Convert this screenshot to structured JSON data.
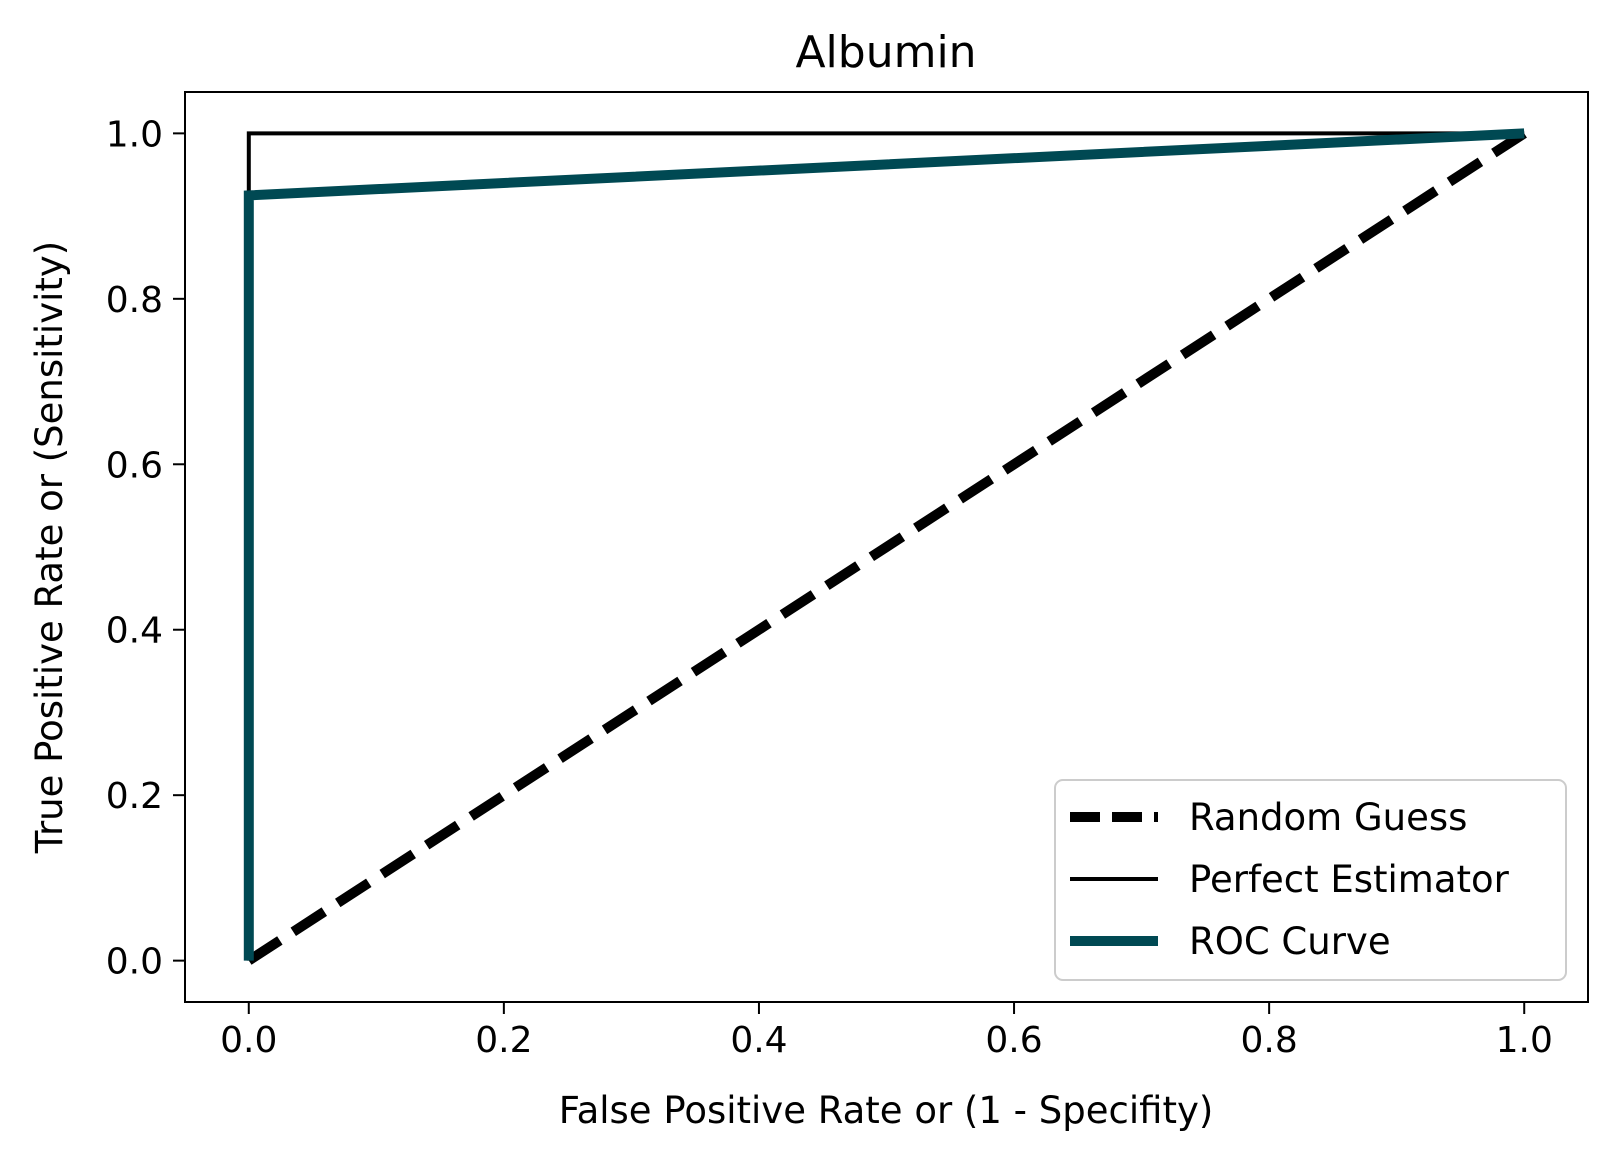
{
  "chart_data": {
    "type": "line",
    "title": "Albumin",
    "xlabel": "False Positive Rate or (1 - Specifity)",
    "ylabel": "True Positive Rate or (Sensitivity)",
    "xlim": [
      -0.05,
      1.05
    ],
    "ylim": [
      -0.05,
      1.05
    ],
    "xticks": [
      "0.0",
      "0.2",
      "0.4",
      "0.6",
      "0.8",
      "1.0"
    ],
    "yticks": [
      "0.0",
      "0.2",
      "0.4",
      "0.6",
      "0.8",
      "1.0"
    ],
    "grid": false,
    "legend_position": "lower-right",
    "series": [
      {
        "name": "Random Guess",
        "color": "#000000",
        "style": "dashed",
        "x": [
          0,
          1
        ],
        "y": [
          0,
          1
        ]
      },
      {
        "name": "Perfect Estimator",
        "color": "#000000",
        "style": "solid-thin",
        "x": [
          0,
          0,
          1
        ],
        "y": [
          0,
          1,
          1
        ]
      },
      {
        "name": "ROC Curve",
        "color": "#004953",
        "style": "solid-thick",
        "x": [
          0,
          0,
          1
        ],
        "y": [
          0,
          0.925,
          1
        ]
      }
    ]
  }
}
